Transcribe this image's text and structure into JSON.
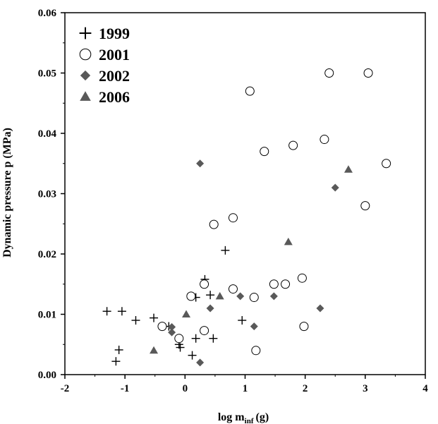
{
  "chart_data": {
    "type": "scatter",
    "title": "",
    "xlabel": "log m",
    "xlabel_sub": "inf",
    "xlabel_unit": "(g)",
    "ylabel": "Dynamic pressure p (MPa)",
    "xlim": [
      -2,
      4
    ],
    "ylim": [
      0,
      0.06
    ],
    "x_ticks": [
      "-2",
      "-1",
      "0",
      "1",
      "2",
      "3",
      "4"
    ],
    "y_ticks": [
      "0.00",
      "0.01",
      "0.02",
      "0.03",
      "0.04",
      "0.05",
      "0.06"
    ],
    "grid": false,
    "legend_position": "top-left",
    "series": [
      {
        "name": "1999",
        "marker": "plus",
        "color": "#000000",
        "points": [
          [
            -1.3,
            0.0105
          ],
          [
            -1.05,
            0.0105
          ],
          [
            -1.1,
            0.0041
          ],
          [
            -1.15,
            0.0022
          ],
          [
            -0.82,
            0.009
          ],
          [
            -0.52,
            0.0094
          ],
          [
            -0.27,
            0.008
          ],
          [
            -0.1,
            0.005
          ],
          [
            -0.08,
            0.0045
          ],
          [
            0.12,
            0.0032
          ],
          [
            0.18,
            0.0128
          ],
          [
            0.18,
            0.006
          ],
          [
            0.33,
            0.0158
          ],
          [
            0.42,
            0.0132
          ],
          [
            0.47,
            0.006
          ],
          [
            0.67,
            0.0206
          ],
          [
            0.95,
            0.009
          ]
        ]
      },
      {
        "name": "2001",
        "marker": "circle",
        "color": "#000000",
        "points": [
          [
            -0.38,
            0.008
          ],
          [
            -0.1,
            0.006
          ],
          [
            0.1,
            0.013
          ],
          [
            0.32,
            0.015
          ],
          [
            0.32,
            0.0073
          ],
          [
            0.48,
            0.0249
          ],
          [
            0.8,
            0.026
          ],
          [
            0.8,
            0.0142
          ],
          [
            1.08,
            0.047
          ],
          [
            1.15,
            0.0128
          ],
          [
            1.18,
            0.004
          ],
          [
            1.32,
            0.037
          ],
          [
            1.48,
            0.015
          ],
          [
            1.67,
            0.015
          ],
          [
            1.8,
            0.038
          ],
          [
            1.95,
            0.016
          ],
          [
            1.98,
            0.008
          ],
          [
            2.32,
            0.039
          ],
          [
            2.4,
            0.05
          ],
          [
            3.0,
            0.028
          ],
          [
            3.05,
            0.05
          ],
          [
            3.35,
            0.035
          ]
        ]
      },
      {
        "name": "2002",
        "marker": "diamond",
        "color": "#595959",
        "points": [
          [
            -0.22,
            0.0079
          ],
          [
            -0.22,
            0.007
          ],
          [
            0.25,
            0.035
          ],
          [
            0.25,
            0.002
          ],
          [
            0.42,
            0.011
          ],
          [
            0.92,
            0.013
          ],
          [
            1.15,
            0.008
          ],
          [
            1.48,
            0.013
          ],
          [
            2.25,
            0.011
          ],
          [
            2.5,
            0.031
          ]
        ]
      },
      {
        "name": "2006",
        "marker": "triangle",
        "color": "#595959",
        "points": [
          [
            -0.52,
            0.004
          ],
          [
            0.02,
            0.01
          ],
          [
            0.58,
            0.013
          ],
          [
            1.72,
            0.022
          ],
          [
            2.72,
            0.034
          ]
        ]
      }
    ]
  }
}
